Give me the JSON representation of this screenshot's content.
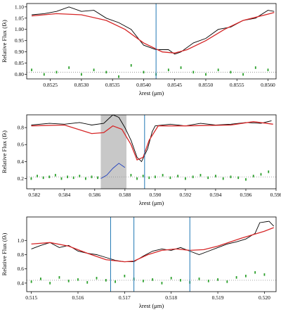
{
  "chart_data": [
    {
      "type": "line",
      "ylabel": "Relative Flux (fλ)",
      "xlabel": "λrest (μm)",
      "xlim": [
        0.85212,
        0.85613
      ],
      "ylim": [
        0.78,
        1.115
      ],
      "xticks": [
        0.8525,
        {
          "value": 0.853,
          "label": "0.8530"
        },
        0.8535,
        {
          "value": 0.854,
          "label": "0.8540"
        },
        0.8545,
        {
          "value": 0.855,
          "label": "0.8550"
        },
        0.8555,
        {
          "value": 0.856,
          "label": "0.8560"
        }
      ],
      "yticks": [
        {
          "value": 0.8,
          "label": "0.80"
        },
        0.85,
        {
          "value": 0.9,
          "label": "0.90"
        },
        0.95,
        {
          "value": 1.0,
          "label": "1.00"
        },
        1.05,
        {
          "value": 1.1,
          "label": "1.10"
        }
      ],
      "vlines": [
        0.8542
      ],
      "vline_color": "#1f77b4",
      "reference_line": 0.81,
      "series": [
        {
          "style": "line",
          "color": "#000000",
          "x": [
            0.8522,
            0.8524,
            0.8526,
            0.8528,
            0.853,
            0.8532,
            0.8534,
            0.8536,
            0.8538,
            0.854,
            0.8542,
            0.8544,
            0.8545,
            0.8546,
            0.8548,
            0.855,
            0.8552,
            0.8554,
            0.8556,
            0.8558,
            0.856,
            0.8561
          ],
          "values": [
            1.065,
            1.07,
            1.08,
            1.1,
            1.08,
            1.085,
            1.05,
            1.03,
            1.0,
            0.93,
            0.91,
            0.91,
            0.89,
            0.9,
            0.94,
            0.96,
            1.0,
            1.01,
            1.04,
            1.05,
            1.085,
            1.08
          ]
        },
        {
          "style": "line",
          "color": "#d62728",
          "x": [
            0.8522,
            0.8526,
            0.853,
            0.8534,
            0.8537,
            0.854,
            0.8543,
            0.8545,
            0.8547,
            0.855,
            0.8553,
            0.8556,
            0.8561
          ],
          "values": [
            1.06,
            1.07,
            1.065,
            1.04,
            1.0,
            0.94,
            0.9,
            0.895,
            0.91,
            0.95,
            1.0,
            1.04,
            1.075
          ]
        },
        {
          "style": "points",
          "color": "#2ca02c",
          "x": [
            0.8522,
            0.8524,
            0.8526,
            0.8528,
            0.853,
            0.8532,
            0.8534,
            0.8536,
            0.8538,
            0.854,
            0.8542,
            0.8544,
            0.8546,
            0.8548,
            0.855,
            0.8552,
            0.8554,
            0.8556,
            0.8558,
            0.856
          ],
          "values": [
            0.82,
            0.8,
            0.81,
            0.83,
            0.8,
            0.82,
            0.81,
            0.79,
            0.84,
            0.81,
            0.8,
            0.82,
            0.83,
            0.81,
            0.8,
            0.82,
            0.81,
            0.8,
            0.83,
            0.82
          ]
        }
      ]
    },
    {
      "type": "line",
      "ylabel": "Relative Flux (fλ)",
      "xlabel": "λrest (μm)",
      "xlim": [
        0.5815,
        0.598
      ],
      "ylim": [
        0.08,
        0.95
      ],
      "xticks": [
        0.582,
        0.584,
        0.586,
        0.588,
        {
          "value": 0.59,
          "label": "0.590"
        },
        0.592,
        0.594,
        0.596,
        0.598
      ],
      "yticks": [
        0.2,
        0.4,
        0.6,
        0.8
      ],
      "vlines": [
        0.5893
      ],
      "vline_color": "#1f77b4",
      "shaded": [
        0.5864,
        0.5881
      ],
      "shade_color": "#c8c8c8",
      "reference_line": 0.22,
      "series": [
        {
          "style": "line",
          "color": "#000000",
          "x": [
            0.5818,
            0.583,
            0.584,
            0.585,
            0.5858,
            0.5866,
            0.5872,
            0.5876,
            0.588,
            0.5884,
            0.5888,
            0.5891,
            0.5895,
            0.5898,
            0.59,
            0.591,
            0.592,
            0.593,
            0.594,
            0.595,
            0.596,
            0.597,
            0.5977
          ],
          "values": [
            0.83,
            0.85,
            0.84,
            0.86,
            0.83,
            0.85,
            0.95,
            0.92,
            0.8,
            0.65,
            0.45,
            0.4,
            0.55,
            0.75,
            0.82,
            0.84,
            0.82,
            0.85,
            0.83,
            0.84,
            0.86,
            0.85,
            0.88
          ]
        },
        {
          "style": "line",
          "color": "#d62728",
          "x": [
            0.5818,
            0.584,
            0.5858,
            0.5866,
            0.5872,
            0.5878,
            0.5884,
            0.5888,
            0.5892,
            0.5896,
            0.5902,
            0.592,
            0.595,
            0.5965,
            0.5978
          ],
          "values": [
            0.82,
            0.83,
            0.73,
            0.74,
            0.82,
            0.78,
            0.6,
            0.42,
            0.45,
            0.65,
            0.82,
            0.82,
            0.83,
            0.87,
            0.84
          ]
        },
        {
          "style": "points",
          "color": "#2ca02c",
          "x": [
            0.5818,
            0.5822,
            0.5826,
            0.583,
            0.5834,
            0.5838,
            0.5842,
            0.5846,
            0.585,
            0.5854,
            0.5858,
            0.5862,
            0.5884,
            0.5888,
            0.5892,
            0.5896,
            0.59,
            0.5905,
            0.591,
            0.5915,
            0.592,
            0.5925,
            0.593,
            0.5935,
            0.594,
            0.5945,
            0.595,
            0.5955,
            0.596,
            0.5965,
            0.597,
            0.5975
          ],
          "values": [
            0.2,
            0.23,
            0.21,
            0.22,
            0.24,
            0.2,
            0.22,
            0.21,
            0.23,
            0.2,
            0.22,
            0.21,
            0.24,
            0.2,
            0.23,
            0.21,
            0.22,
            0.24,
            0.21,
            0.23,
            0.2,
            0.22,
            0.24,
            0.21,
            0.23,
            0.2,
            0.22,
            0.21,
            0.19,
            0.23,
            0.25,
            0.28
          ]
        },
        {
          "style": "line",
          "color": "#1f3fbf",
          "x": [
            0.5864,
            0.5868,
            0.5872,
            0.5876,
            0.588
          ],
          "values": [
            0.2,
            0.24,
            0.32,
            0.38,
            0.33
          ]
        }
      ]
    },
    {
      "type": "line",
      "ylabel": "Relative Flux (fλ)",
      "xlabel": "λrest (μm)",
      "xlim": [
        0.5149,
        0.52025
      ],
      "ylim": [
        0.28,
        1.33
      ],
      "xticks": [
        0.515,
        0.516,
        0.517,
        0.518,
        0.519,
        {
          "value": 0.52,
          "label": "0.520"
        }
      ],
      "yticks": [
        0.4,
        0.6,
        0.8,
        {
          "value": 1.0,
          "label": "1.0"
        }
      ],
      "vlines": [
        0.5167,
        0.5172,
        0.5184
      ],
      "vline_color": "#1f77b4",
      "reference_line": 0.44,
      "series": [
        {
          "style": "line",
          "color": "#000000",
          "x": [
            0.515,
            0.5152,
            0.5154,
            0.5156,
            0.5158,
            0.516,
            0.5162,
            0.5164,
            0.5166,
            0.5168,
            0.517,
            0.5172,
            0.5174,
            0.5176,
            0.5178,
            0.518,
            0.5182,
            0.5184,
            0.5186,
            0.5188,
            0.519,
            0.5192,
            0.5194,
            0.5196,
            0.5198,
            0.5199,
            0.5201,
            0.5202
          ],
          "values": [
            0.88,
            0.93,
            0.97,
            0.9,
            0.93,
            0.85,
            0.82,
            0.8,
            0.76,
            0.72,
            0.7,
            0.7,
            0.78,
            0.85,
            0.88,
            0.86,
            0.9,
            0.85,
            0.8,
            0.85,
            0.9,
            0.95,
            0.98,
            1.02,
            1.1,
            1.25,
            1.27,
            1.2
          ]
        },
        {
          "style": "line",
          "color": "#d62728",
          "x": [
            0.515,
            0.5154,
            0.5158,
            0.5162,
            0.5166,
            0.517,
            0.5172,
            0.5175,
            0.5178,
            0.5181,
            0.5184,
            0.5187,
            0.519,
            0.5195,
            0.52,
            0.5202
          ],
          "values": [
            0.95,
            0.97,
            0.92,
            0.82,
            0.73,
            0.7,
            0.71,
            0.8,
            0.86,
            0.88,
            0.86,
            0.87,
            0.92,
            1.03,
            1.13,
            1.18
          ]
        },
        {
          "style": "points",
          "color": "#2ca02c",
          "x": [
            0.515,
            0.5152,
            0.5154,
            0.5156,
            0.5158,
            0.516,
            0.5162,
            0.5164,
            0.5166,
            0.5168,
            0.517,
            0.5172,
            0.5174,
            0.5176,
            0.5178,
            0.518,
            0.5182,
            0.5184,
            0.5186,
            0.5188,
            0.519,
            0.5192,
            0.5194,
            0.5196,
            0.5198,
            0.52
          ],
          "values": [
            0.42,
            0.46,
            0.4,
            0.48,
            0.43,
            0.45,
            0.41,
            0.47,
            0.44,
            0.42,
            0.5,
            0.46,
            0.43,
            0.45,
            0.4,
            0.47,
            0.44,
            0.41,
            0.46,
            0.43,
            0.45,
            0.42,
            0.48,
            0.5,
            0.55,
            0.52
          ]
        }
      ]
    }
  ]
}
